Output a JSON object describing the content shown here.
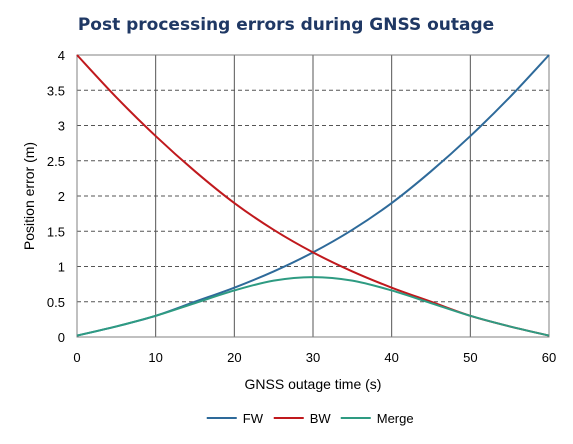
{
  "chart_data": {
    "type": "line",
    "title": "Post processing  errors during GNSS outage",
    "xlabel": "GNSS outage time (s)",
    "ylabel": "Position error (m)",
    "xlim": [
      0,
      60
    ],
    "ylim": [
      0,
      4
    ],
    "xticks": [
      "0",
      "10",
      "20",
      "30",
      "40",
      "50",
      "60"
    ],
    "yticks": [
      "0",
      "0.5",
      "1",
      "1.5",
      "2",
      "2.5",
      "3",
      "3.5",
      "4"
    ],
    "grid": {
      "vertical": "solid",
      "horizontal": "dashed"
    },
    "legend_position": "bottom",
    "x": [
      0,
      5,
      10,
      15,
      20,
      25,
      30,
      35,
      40,
      45,
      50,
      55,
      60
    ],
    "series": [
      {
        "name": "FW",
        "color": "#2e6a9a",
        "values": [
          0.02,
          0.15,
          0.3,
          0.5,
          0.7,
          0.93,
          1.2,
          1.52,
          1.9,
          2.35,
          2.85,
          3.4,
          4.0
        ]
      },
      {
        "name": "BW",
        "color": "#c0191d",
        "values": [
          4.0,
          3.4,
          2.85,
          2.35,
          1.9,
          1.52,
          1.2,
          0.93,
          0.7,
          0.5,
          0.3,
          0.15,
          0.02
        ]
      },
      {
        "name": "Merge",
        "color": "#2e9b82",
        "values": [
          0.02,
          0.15,
          0.3,
          0.48,
          0.66,
          0.8,
          0.85,
          0.8,
          0.66,
          0.48,
          0.3,
          0.15,
          0.02
        ]
      }
    ]
  }
}
